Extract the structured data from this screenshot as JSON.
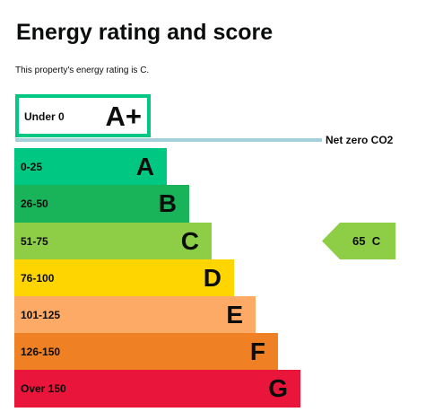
{
  "heading": "Energy rating and score",
  "summary": "This property's energy rating is C.",
  "top_band": {
    "range": "Under 0",
    "letter": "A+",
    "color": "#00c781"
  },
  "net_zero": {
    "label": "Net zero CO2",
    "color": "#a6cfdc"
  },
  "bands": [
    {
      "range": "0-25",
      "letter": "A",
      "color": "#00c781"
    },
    {
      "range": "26-50",
      "letter": "B",
      "color": "#19b459"
    },
    {
      "range": "51-75",
      "letter": "C",
      "color": "#8dce46"
    },
    {
      "range": "76-100",
      "letter": "D",
      "color": "#ffd500"
    },
    {
      "range": "101-125",
      "letter": "E",
      "color": "#fcaa65"
    },
    {
      "range": "126-150",
      "letter": "F",
      "color": "#ef8023"
    },
    {
      "range": "Over 150",
      "letter": "G",
      "color": "#e9153b"
    }
  ],
  "current_rating": {
    "score": "65",
    "letter": "C",
    "color": "#8dce46"
  }
}
